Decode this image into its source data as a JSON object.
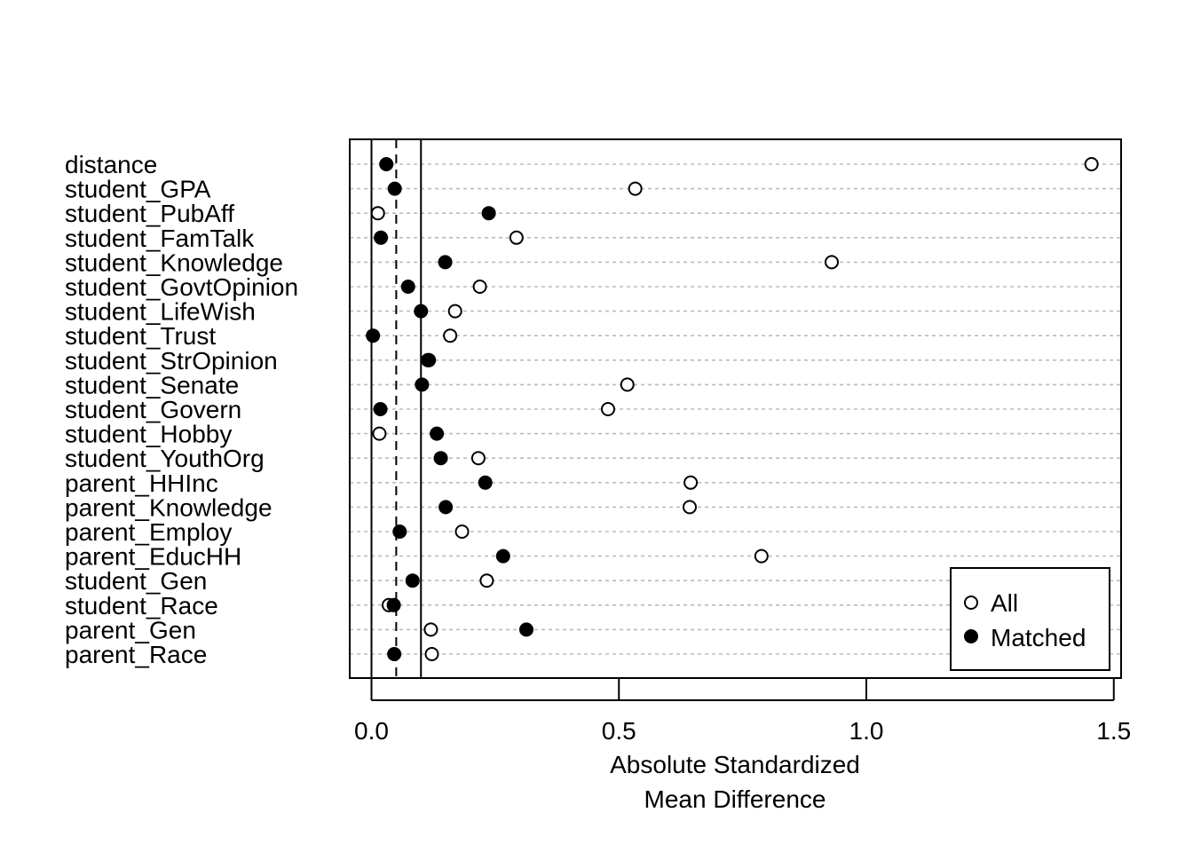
{
  "chart_data": {
    "type": "scatter",
    "variables": [
      "distance",
      "student_GPA",
      "student_PubAff",
      "student_FamTalk",
      "student_Knowledge",
      "student_GovtOpinion",
      "student_LifeWish",
      "student_Trust",
      "student_StrOpinion",
      "student_Senate",
      "student_Govern",
      "student_Hobby",
      "student_YouthOrg",
      "parent_HHInc",
      "parent_Knowledge",
      "parent_Employ",
      "parent_EducHH",
      "student_Gen",
      "student_Race",
      "parent_Gen",
      "parent_Race"
    ],
    "series": [
      {
        "name": "All",
        "marker": "open-circle",
        "values": [
          1.455,
          0.533,
          0.013,
          0.293,
          0.93,
          0.219,
          0.169,
          0.159,
          0.114,
          0.517,
          0.478,
          0.016,
          0.216,
          0.645,
          0.643,
          0.183,
          0.788,
          0.233,
          0.035,
          0.12,
          0.122
        ]
      },
      {
        "name": "Matched",
        "marker": "filled-circle",
        "values": [
          0.03,
          0.047,
          0.237,
          0.019,
          0.149,
          0.074,
          0.1,
          0.003,
          0.116,
          0.102,
          0.018,
          0.132,
          0.14,
          0.23,
          0.15,
          0.057,
          0.266,
          0.083,
          0.045,
          0.313,
          0.046
        ]
      }
    ],
    "reference_lines": {
      "solid": [
        0,
        0.1
      ],
      "dashed": [
        0.05
      ]
    },
    "xlabel": [
      "Absolute Standardized",
      "Mean Difference"
    ],
    "xlim": [
      -0.045,
      1.5
    ],
    "xticks": [
      "0.0",
      "0.5",
      "1.0",
      "1.5"
    ],
    "grid": "horizontal dotted per variable",
    "legend": {
      "placement": "bottom-right",
      "entries": [
        "All",
        "Matched"
      ]
    }
  }
}
